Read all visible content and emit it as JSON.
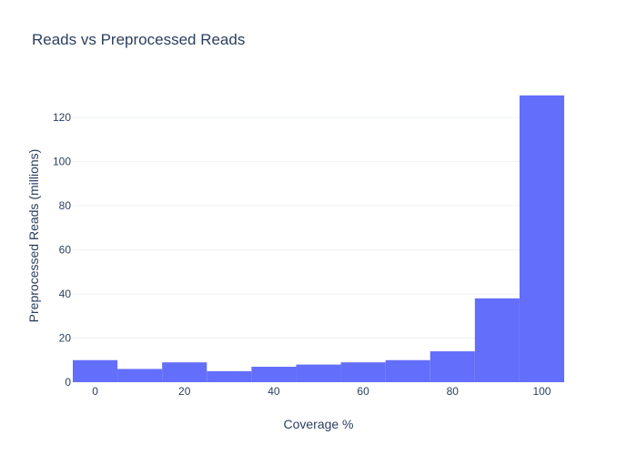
{
  "chart_data": {
    "type": "bar",
    "title": "Reads vs Preprocessed Reads",
    "xlabel": "Coverage %",
    "ylabel": "Preprocessed Reads (millions)",
    "x": [
      0,
      10,
      20,
      30,
      40,
      50,
      60,
      70,
      80,
      90,
      100
    ],
    "values": [
      10,
      6,
      9,
      5,
      7,
      8,
      9,
      10,
      14,
      38,
      130
    ],
    "bin_width": 10,
    "xlim": [
      -5,
      105
    ],
    "ylim": [
      0,
      132
    ],
    "x_ticks": [
      0,
      20,
      40,
      60,
      80,
      100
    ],
    "y_ticks": [
      0,
      20,
      40,
      60,
      80,
      100,
      120
    ],
    "grid": true,
    "bar_color": "#636efa",
    "grid_color": "#eef0f4",
    "text_color": "#2a3f5f"
  }
}
